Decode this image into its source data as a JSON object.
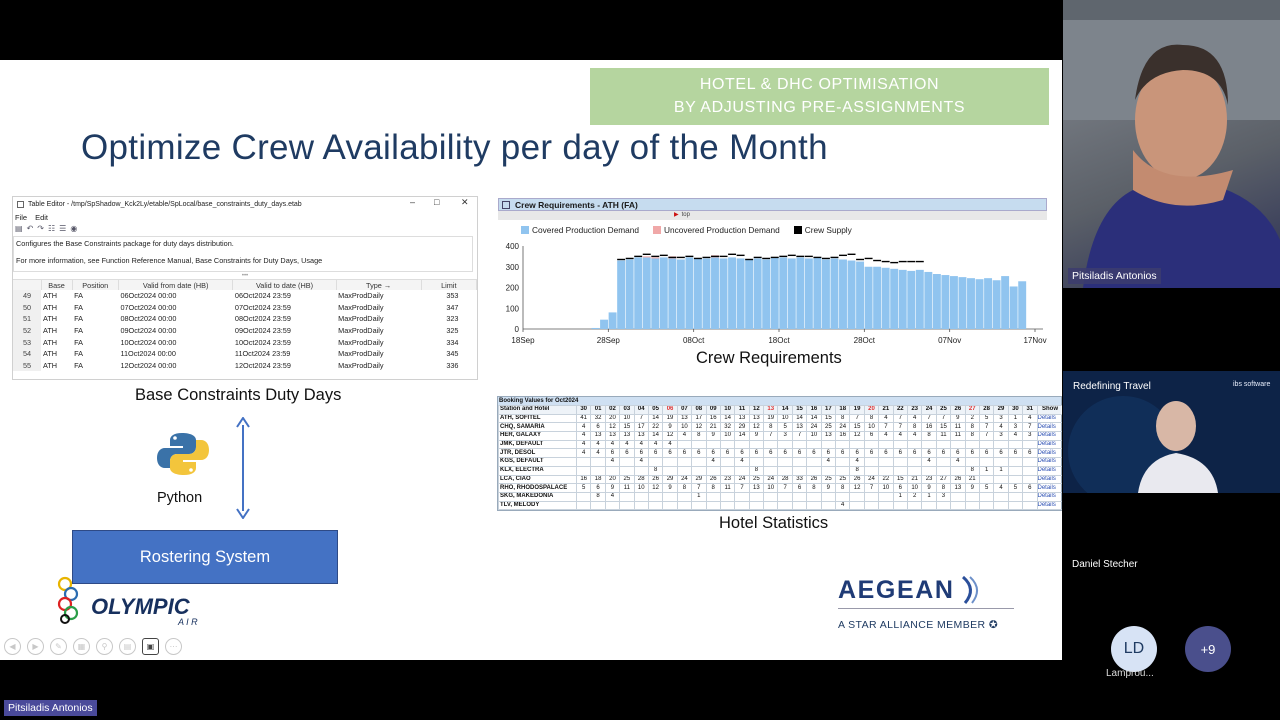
{
  "slide": {
    "banner_line1": "HOTEL & DHC OPTIMISATION",
    "banner_line2": "BY ADJUSTING PRE-ASSIGNMENTS",
    "title": "Optimize Crew Availability per day of the Month",
    "caption_base": "Base Constraints Duty Days",
    "caption_crew": "Crew Requirements",
    "caption_hotel": "Hotel Statistics",
    "python_label": "Python",
    "rostering_label": "Rostering System",
    "olympic_text": "OLYMPIC",
    "olympic_sub": "A  I  R",
    "aegean_name": "AEGEAN",
    "aegean_tagline": "A STAR ALLIANCE MEMBER"
  },
  "table_editor": {
    "title": "Table Editor - /tmp/SpShadow_Kck2Ly/etable/SpLocal/base_constraints_duty_days.etab",
    "menu": [
      "File",
      "Edit"
    ],
    "desc1": "Configures the Base Constraints package for duty days distribution.",
    "desc2": "For more information, see Function Reference Manual, Base Constraints for Duty Days, Usage",
    "columns": [
      "Base",
      "Position",
      "Valid from date (HB)",
      "Valid to date (HB)",
      "Type →",
      "Limit"
    ],
    "rows": [
      [
        "49",
        "ATH",
        "FA",
        "06Oct2024 00:00",
        "06Oct2024 23:59",
        "MaxProdDaily",
        "353"
      ],
      [
        "50",
        "ATH",
        "FA",
        "07Oct2024 00:00",
        "07Oct2024 23:59",
        "MaxProdDaily",
        "347"
      ],
      [
        "51",
        "ATH",
        "FA",
        "08Oct2024 00:00",
        "08Oct2024 23:59",
        "MaxProdDaily",
        "323"
      ],
      [
        "52",
        "ATH",
        "FA",
        "09Oct2024 00:00",
        "09Oct2024 23:59",
        "MaxProdDaily",
        "325"
      ],
      [
        "53",
        "ATH",
        "FA",
        "10Oct2024 00:00",
        "10Oct2024 23:59",
        "MaxProdDaily",
        "334"
      ],
      [
        "54",
        "ATH",
        "FA",
        "11Oct2024 00:00",
        "11Oct2024 23:59",
        "MaxProdDaily",
        "345"
      ],
      [
        "55",
        "ATH",
        "FA",
        "12Oct2024 00:00",
        "12Oct2024 23:59",
        "MaxProdDaily",
        "336"
      ]
    ]
  },
  "crew_panel": {
    "header": "Crew Requirements - ATH (FA)",
    "sub": "top",
    "legend": [
      "Covered Production Demand",
      "Uncovered Production Demand",
      "Crew Supply"
    ]
  },
  "chart_data": {
    "type": "bar",
    "ylim": [
      0,
      400
    ],
    "yticks": [
      "0",
      "100",
      "200",
      "300",
      "400"
    ],
    "xticks": [
      "18Sep",
      "28Sep",
      "08Oct",
      "18Oct",
      "28Oct",
      "07Nov",
      "17Nov"
    ],
    "x_start": "18Sep2024",
    "colors": {
      "covered": "#90c4ef",
      "uncovered": "#f0a8a8",
      "supply": "#000000"
    },
    "series": [
      {
        "name": "Covered Production Demand",
        "values": [
          5,
          45,
          80,
          330,
          335,
          345,
          345,
          340,
          345,
          340,
          335,
          345,
          340,
          340,
          345,
          340,
          345,
          340,
          335,
          340,
          335,
          345,
          345,
          340,
          345,
          340,
          345,
          335,
          340,
          335,
          330,
          325,
          300,
          300,
          295,
          290,
          285,
          280,
          285,
          275,
          265,
          260,
          255,
          250,
          245,
          240,
          245,
          235,
          255,
          205,
          230
        ]
      },
      {
        "name": "Uncovered Production Demand",
        "values": [
          0,
          0,
          0,
          0,
          0,
          0,
          5,
          5,
          0,
          10,
          0,
          0,
          0,
          0,
          10,
          0,
          0,
          0,
          0,
          0,
          0,
          0,
          0,
          0,
          0,
          0,
          0,
          0,
          0,
          0,
          0,
          0,
          0,
          0,
          0,
          0,
          0,
          0,
          0,
          0,
          0,
          0,
          0,
          0,
          0,
          0,
          0,
          0,
          0,
          0,
          0
        ]
      },
      {
        "name": "Crew Supply",
        "values": [
          0,
          0,
          0,
          335,
          340,
          350,
          360,
          350,
          355,
          345,
          345,
          350,
          340,
          345,
          350,
          350,
          360,
          355,
          335,
          345,
          340,
          345,
          350,
          355,
          350,
          350,
          345,
          340,
          345,
          355,
          360,
          335,
          340,
          330,
          325,
          320,
          325,
          325,
          325,
          0,
          0,
          0,
          0,
          0,
          0,
          0,
          0,
          0,
          0,
          0,
          0
        ]
      }
    ]
  },
  "hotel_stats": {
    "title": "Booking Values for Oct2024",
    "header": [
      "Station and Hotel",
      "30",
      "01",
      "02",
      "03",
      "04",
      "05",
      "06",
      "07",
      "08",
      "09",
      "10",
      "11",
      "12",
      "13",
      "14",
      "15",
      "16",
      "17",
      "18",
      "19",
      "20",
      "21",
      "22",
      "23",
      "24",
      "25",
      "26",
      "27",
      "28",
      "29",
      "30",
      "31",
      "Show"
    ],
    "rows": [
      [
        "ATH, SOFITEL",
        "41",
        "32",
        "20",
        "10",
        "7",
        "14",
        "19",
        "13",
        "17",
        "16",
        "14",
        "13",
        "13",
        "19",
        "10",
        "14",
        "14",
        "15",
        "8",
        "7",
        "8",
        "4",
        "7",
        "4",
        "7",
        "7",
        "9",
        "2",
        "5",
        "3",
        "1",
        "4",
        "Details"
      ],
      [
        "CHQ, SAMARIA",
        "4",
        "6",
        "12",
        "15",
        "17",
        "22",
        "9",
        "10",
        "12",
        "21",
        "32",
        "29",
        "12",
        "8",
        "5",
        "13",
        "24",
        "25",
        "24",
        "15",
        "10",
        "7",
        "7",
        "8",
        "16",
        "15",
        "11",
        "8",
        "7",
        "4",
        "3",
        "7",
        "Details"
      ],
      [
        "HER, GALAXY",
        "4",
        "13",
        "13",
        "13",
        "13",
        "14",
        "12",
        "4",
        "8",
        "9",
        "10",
        "14",
        "9",
        "7",
        "3",
        "7",
        "10",
        "13",
        "16",
        "12",
        "6",
        "4",
        "4",
        "4",
        "8",
        "11",
        "11",
        "8",
        "7",
        "3",
        "4",
        "3",
        "Details"
      ],
      [
        "JMK, DEFAULT",
        "4",
        "4",
        "4",
        "4",
        "4",
        "4",
        "4",
        "",
        "",
        "",
        "",
        "",
        "",
        "",
        "",
        "",
        "",
        "",
        "",
        "",
        "",
        "",
        "",
        "",
        "",
        "",
        "",
        "",
        "",
        "",
        "",
        "",
        "Details"
      ],
      [
        "JTR, DESOL",
        "4",
        "4",
        "6",
        "6",
        "6",
        "6",
        "6",
        "6",
        "6",
        "6",
        "6",
        "6",
        "6",
        "6",
        "6",
        "6",
        "6",
        "6",
        "6",
        "6",
        "6",
        "6",
        "6",
        "6",
        "6",
        "6",
        "6",
        "6",
        "6",
        "6",
        "6",
        "6",
        "Details"
      ],
      [
        "KGS, DEFAULT",
        "",
        "",
        "4",
        "",
        "4",
        "",
        "",
        "",
        "",
        "4",
        "",
        "4",
        "",
        "",
        "",
        "",
        "",
        "4",
        "",
        "4",
        "",
        "",
        "",
        "",
        "4",
        "",
        "4",
        "",
        "",
        "",
        "",
        "",
        "Details"
      ],
      [
        "KLX, ELECTRA",
        "",
        "",
        "",
        "",
        "",
        "8",
        "",
        "",
        "",
        "",
        "",
        "",
        "8",
        "",
        "",
        "",
        "",
        "",
        "",
        "8",
        "",
        "",
        "",
        "",
        "",
        "",
        "",
        "8",
        "1",
        "1",
        "",
        "",
        "Details"
      ],
      [
        "LCA, CIAO",
        "16",
        "18",
        "20",
        "25",
        "28",
        "26",
        "29",
        "24",
        "29",
        "26",
        "23",
        "24",
        "25",
        "24",
        "28",
        "33",
        "26",
        "25",
        "25",
        "26",
        "24",
        "22",
        "15",
        "21",
        "23",
        "27",
        "26",
        "21",
        "",
        "",
        "",
        "",
        "Details"
      ],
      [
        "RHO, RHODOSPALACE",
        "5",
        "6",
        "9",
        "11",
        "10",
        "12",
        "9",
        "8",
        "7",
        "8",
        "11",
        "7",
        "13",
        "10",
        "7",
        "6",
        "8",
        "9",
        "8",
        "12",
        "7",
        "10",
        "6",
        "10",
        "9",
        "8",
        "13",
        "9",
        "5",
        "4",
        "5",
        "6",
        "Details"
      ],
      [
        "SKG, MAKEDONIA",
        "",
        "8",
        "4",
        "",
        "",
        "",
        "",
        "",
        "1",
        "",
        "",
        "",
        "",
        "",
        "",
        "",
        "",
        "",
        "",
        "",
        "",
        "",
        "1",
        "2",
        "1",
        "3",
        "",
        "",
        "",
        "",
        "",
        "",
        "Details"
      ],
      [
        "TLV, MELODY",
        "",
        "",
        "",
        "",
        "",
        "",
        "",
        "",
        "",
        "",
        "",
        "",
        "",
        "",
        "",
        "",
        "",
        "",
        "4",
        "",
        "",
        "",
        "",
        "",
        "",
        "",
        "",
        "",
        "",
        "",
        "",
        "",
        "Details"
      ]
    ]
  },
  "meeting": {
    "presenter_name": "Pitsiladis Antonios",
    "second_name": "Daniel Stecher",
    "vid2_text": "Redefining Travel",
    "vid2_brand": "ibs software",
    "avatar_initials": "LD",
    "avatar_label": "Lamprou...",
    "more_count": "+9",
    "bottom_tag": "Pitsiladis Antonios"
  }
}
